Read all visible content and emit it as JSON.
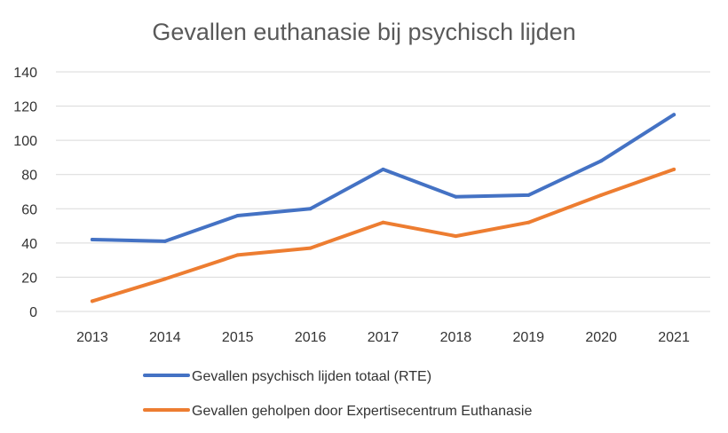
{
  "chart_data": {
    "type": "line",
    "title": "Gevallen euthanasie bij psychisch lijden",
    "xlabel": "",
    "ylabel": "",
    "categories": [
      "2013",
      "2014",
      "2015",
      "2016",
      "2017",
      "2018",
      "2019",
      "2020",
      "2021"
    ],
    "ylim": [
      0,
      140
    ],
    "yticks": [
      0,
      20,
      40,
      60,
      80,
      100,
      120,
      140
    ],
    "grid": true,
    "legend_position": "bottom",
    "series": [
      {
        "name": "Gevallen psychisch lijden totaal (RTE)",
        "color": "#4472c4",
        "values": [
          42,
          41,
          56,
          60,
          83,
          67,
          68,
          88,
          115
        ]
      },
      {
        "name": "Gevallen geholpen door Expertisecentrum Euthanasie",
        "color": "#ed7d31",
        "values": [
          6,
          19,
          33,
          37,
          52,
          44,
          52,
          68,
          83
        ]
      }
    ]
  }
}
